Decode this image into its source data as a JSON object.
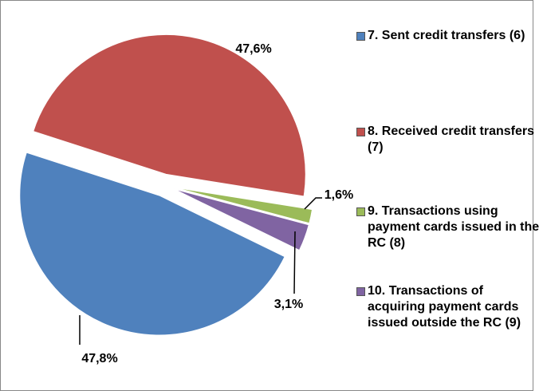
{
  "chart_data": {
    "type": "pie",
    "categories": [
      "7. Sent credit transfers (6)",
      "8. Received credit transfers (7)",
      "9. Transactions using payment cards issued in the RC (8)",
      "10. Transactions of acquiring payment cards issued outside the RC (9)"
    ],
    "values": [
      47.8,
      47.6,
      1.6,
      3.1
    ],
    "value_labels": [
      "47,8%",
      "47,6%",
      "1,6%",
      "3,1%"
    ],
    "colors": [
      "#4f81bd",
      "#c0504d",
      "#9bbb59",
      "#8064a2"
    ],
    "legend": "right"
  }
}
